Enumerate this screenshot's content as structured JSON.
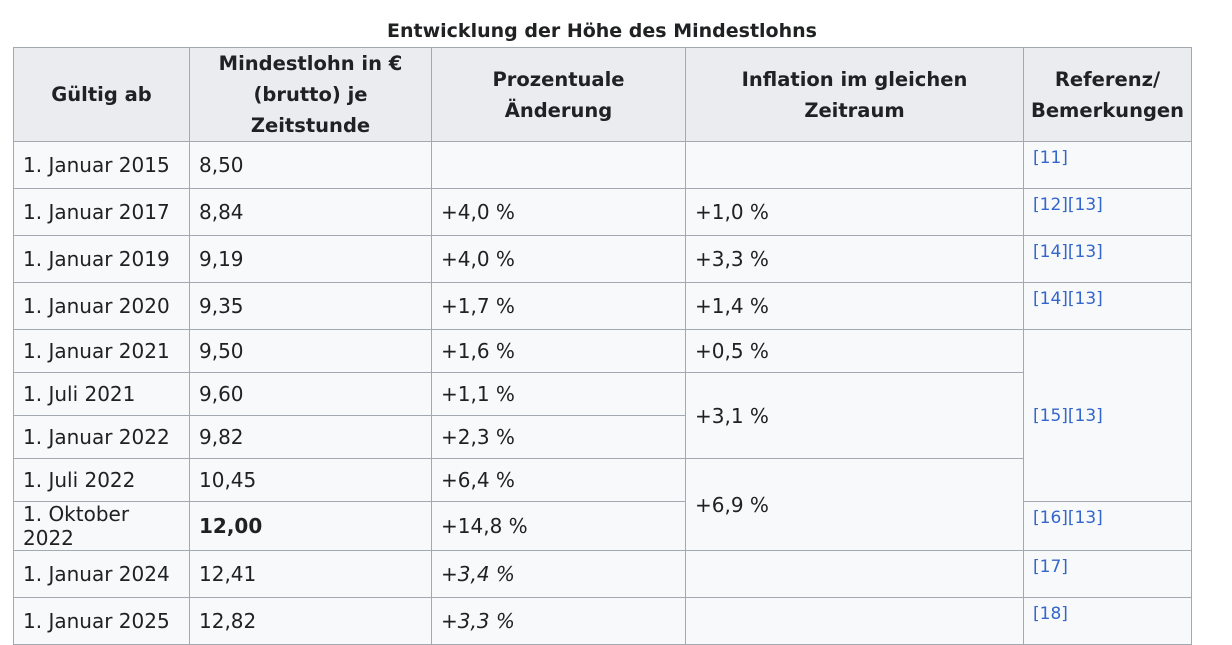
{
  "caption": "Entwicklung der Höhe des Mindestlohns",
  "headers": {
    "gueltig": "Gültig ab",
    "mindestlohn_line1": "Mindestlohn in €",
    "mindestlohn_line2": "(brutto) je Zeitstunde",
    "aenderung": "Prozentuale Änderung",
    "inflation": "Inflation im gleichen Zeitraum",
    "referenz_line1": "Referenz/",
    "referenz_line2": "Bemerkungen"
  },
  "rows": [
    {
      "date": "1. Januar 2015",
      "wage": "8,50",
      "change": "",
      "inflation": "",
      "refs": [
        "[11]"
      ]
    },
    {
      "date": "1. Januar 2017",
      "wage": "8,84",
      "change": "+4,0 %",
      "inflation": "+1,0 %",
      "refs": [
        "[12]",
        "[13]"
      ]
    },
    {
      "date": "1. Januar 2019",
      "wage": "9,19",
      "change": "+4,0 %",
      "inflation": "+3,3 %",
      "refs": [
        "[14]",
        "[13]"
      ]
    },
    {
      "date": "1. Januar 2020",
      "wage": "9,35",
      "change": "+1,7 %",
      "inflation": "+1,4 %",
      "refs": [
        "[14]",
        "[13]"
      ]
    },
    {
      "date": "1. Januar 2021",
      "wage": "9,50",
      "change": "+1,6 %",
      "inflation": "+0,5 %",
      "refs": [
        "[15]",
        "[13]"
      ]
    },
    {
      "date": "1. Juli 2021",
      "wage": "9,60",
      "change": "+1,1 %",
      "inflation": "+3,1 %",
      "refs": []
    },
    {
      "date": "1. Januar 2022",
      "wage": "9,82",
      "change": "+2,3 %",
      "inflation": "",
      "refs": []
    },
    {
      "date": "1. Juli 2022",
      "wage": "10,45",
      "change": "+6,4 %",
      "inflation": "+6,9 %",
      "refs": []
    },
    {
      "date": "1. Oktober 2022",
      "wage": "12,00",
      "change": "+14,8 %",
      "inflation": "",
      "refs": [
        "[16]",
        "[13]"
      ]
    },
    {
      "date": "1. Januar 2024",
      "wage": "12,41",
      "change": "+3,4 %",
      "inflation": "",
      "refs": [
        "[17]"
      ]
    },
    {
      "date": "1. Januar 2025",
      "wage": "12,82",
      "change": "+3,3 %",
      "inflation": "",
      "refs": [
        "[18]"
      ]
    }
  ]
}
